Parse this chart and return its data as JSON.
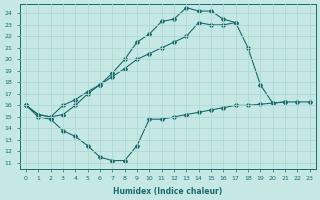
{
  "xlabel": "Humidex (Indice chaleur)",
  "xlim": [
    -0.5,
    23.5
  ],
  "ylim": [
    10.5,
    24.8
  ],
  "yticks": [
    11,
    12,
    13,
    14,
    15,
    16,
    17,
    18,
    19,
    20,
    21,
    22,
    23,
    24
  ],
  "xticks": [
    0,
    1,
    2,
    3,
    4,
    5,
    6,
    7,
    8,
    9,
    10,
    11,
    12,
    13,
    14,
    15,
    16,
    17,
    18,
    19,
    20,
    21,
    22,
    23
  ],
  "bg_color": "#c5e8e5",
  "line_color": "#1a6b6b",
  "grid_color": "#b0d8d5",
  "line1_x": [
    0,
    1,
    2,
    3,
    4,
    5,
    6,
    7,
    8,
    9,
    10,
    11,
    12,
    13,
    14,
    15,
    16,
    17,
    18,
    19,
    20,
    21,
    22,
    23
  ],
  "line1_y": [
    16.0,
    15.0,
    14.8,
    13.8,
    13.3,
    12.5,
    11.5,
    11.2,
    11.2,
    12.5,
    14.8,
    14.8,
    15.0,
    15.2,
    15.4,
    15.6,
    15.8,
    16.0,
    16.0,
    16.1,
    16.2,
    16.3,
    16.3,
    16.3
  ],
  "line2_x": [
    0,
    1,
    2,
    3,
    4,
    5,
    6,
    7,
    8,
    9,
    10,
    11,
    12,
    13,
    14,
    15,
    16,
    17,
    18,
    19,
    20,
    21,
    22,
    23
  ],
  "line2_y": [
    16.0,
    15.2,
    15.0,
    16.0,
    16.5,
    17.2,
    17.8,
    18.5,
    19.2,
    20.0,
    20.5,
    21.0,
    21.5,
    22.0,
    23.2,
    23.0,
    23.0,
    23.2,
    21.0,
    17.8,
    16.2,
    16.3,
    null,
    null
  ],
  "line3_x": [
    0,
    1,
    2,
    3,
    4,
    5,
    6,
    7,
    8,
    9,
    10,
    11,
    12,
    13,
    14,
    15,
    16,
    17,
    18,
    19,
    20,
    21,
    22,
    23
  ],
  "line3_y": [
    16.0,
    15.2,
    15.0,
    15.2,
    16.0,
    17.0,
    17.8,
    18.8,
    20.0,
    21.5,
    22.2,
    23.3,
    23.5,
    24.5,
    24.2,
    24.2,
    23.5,
    23.2,
    null,
    null,
    null,
    null,
    null,
    null
  ]
}
